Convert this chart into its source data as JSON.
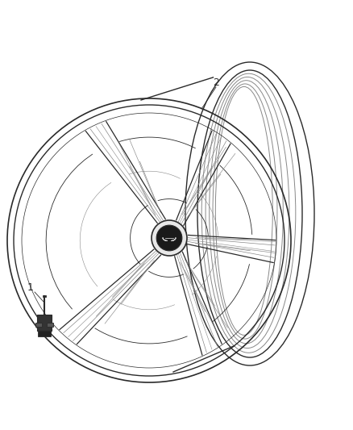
{
  "background_color": "#ffffff",
  "line_color": "#2a2a2a",
  "light_line_color": "#888888",
  "label1": "1",
  "label2": "2",
  "fig_width": 4.38,
  "fig_height": 5.33,
  "dpi": 100
}
